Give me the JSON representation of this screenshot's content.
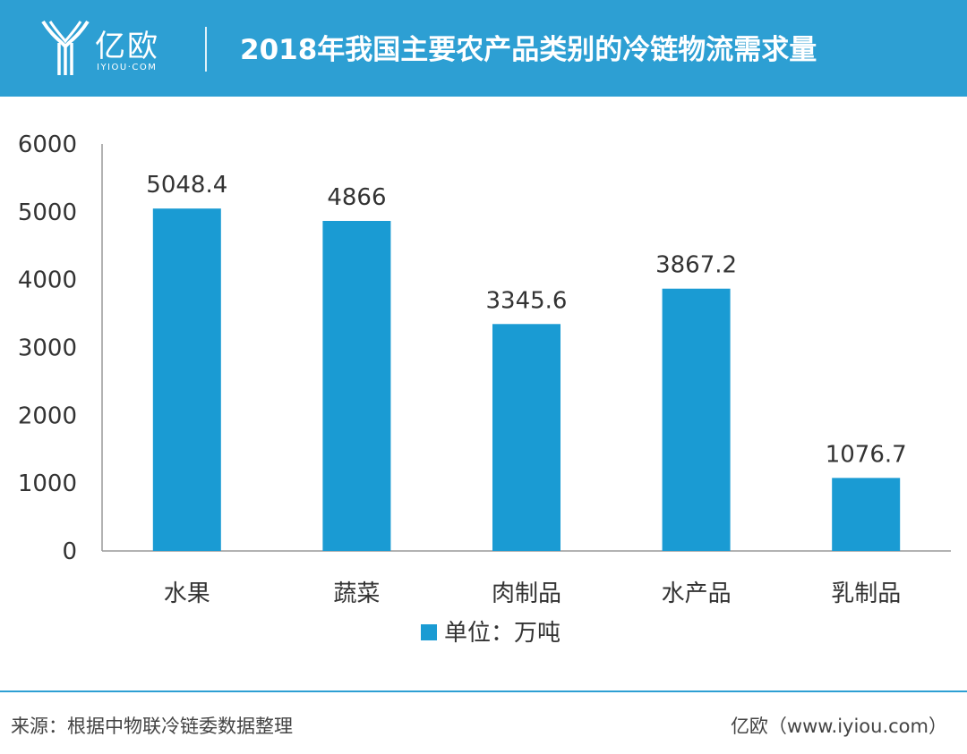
{
  "header": {
    "logo_name": "亿欧",
    "logo_domain": "IYIOU·COM",
    "title": "2018年我国主要农产品类别的冷链物流需求量"
  },
  "colors": {
    "header_bg": "#2d9fd3",
    "bar": "#1a9bd3",
    "axis": "#999999",
    "text": "#333333"
  },
  "chart_data": {
    "type": "bar",
    "categories": [
      "水果",
      "蔬菜",
      "肉制品",
      "水产品",
      "乳制品"
    ],
    "series": [
      {
        "name": "单位：万吨",
        "values": [
          5048.4,
          4866,
          3345.6,
          3867.2,
          1076.7
        ]
      }
    ],
    "value_labels": [
      "5048.4",
      "4866",
      "3345.6",
      "3867.2",
      "1076.7"
    ],
    "y_ticks": [
      0,
      1000,
      2000,
      3000,
      4000,
      5000,
      6000
    ],
    "ylim": [
      0,
      6000
    ],
    "grid": false,
    "legend_position": "bottom-center"
  },
  "footer": {
    "source": "来源：根据中物联冷链委数据整理",
    "credit": "亿欧（www.iyiou.com）"
  }
}
